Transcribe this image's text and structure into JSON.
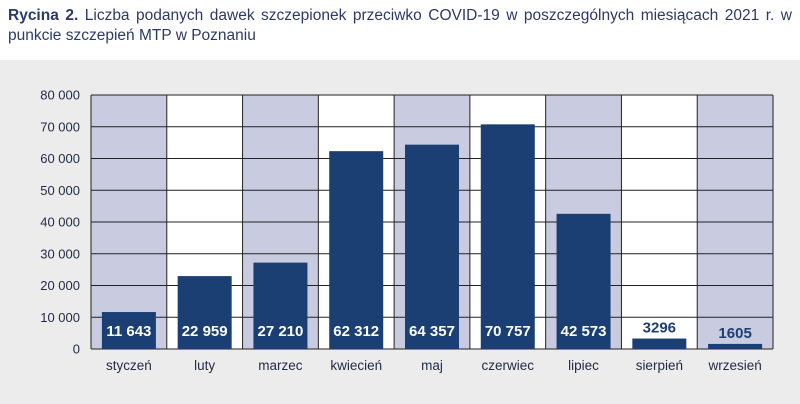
{
  "caption": {
    "label": "Rycina 2.",
    "text": "Liczba podanych dawek szczepionek przeciwko COVID-19 w poszczególnych miesiącach 2021 r. w punkcie szczepień MTP w Poznaniu"
  },
  "colors": {
    "bar": "#1b3f72",
    "band_shaded": "#c9cbe0",
    "band_plain": "#ffffff",
    "background": "#ececec",
    "label_on_bar": "#ffffff",
    "label_above_bar": "#1b3f72"
  },
  "chart_data": {
    "type": "bar",
    "title": "",
    "xlabel": "",
    "ylabel": "",
    "categories": [
      "styczeń",
      "luty",
      "marzec",
      "kwiecień",
      "maj",
      "czerwiec",
      "lipiec",
      "sierpień",
      "wrzesień"
    ],
    "values": [
      11643,
      22959,
      27210,
      62312,
      64357,
      70757,
      42573,
      3296,
      1605
    ],
    "value_labels": [
      "11 643",
      "22 959",
      "27 210",
      "62 312",
      "64 357",
      "70 757",
      "42 573",
      "3296",
      "1605"
    ],
    "ylim": [
      0,
      80000
    ],
    "yticks": [
      0,
      10000,
      20000,
      30000,
      40000,
      50000,
      60000,
      70000,
      80000
    ],
    "ytick_labels": [
      "0",
      "10 000",
      "20 000",
      "30 000",
      "40 000",
      "50 000",
      "60 000",
      "70 000",
      "80 000"
    ],
    "grid": true,
    "legend": "none"
  }
}
